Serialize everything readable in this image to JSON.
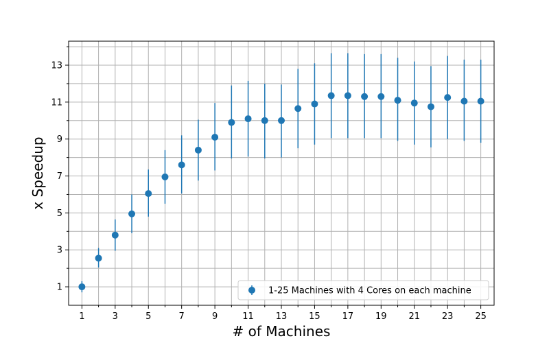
{
  "chart_data": {
    "type": "scatter",
    "title": "",
    "xlabel": "# of Machines",
    "ylabel": "x Speedup",
    "xlim": [
      0.2,
      25.8
    ],
    "ylim": [
      0.0,
      14.3
    ],
    "grid": true,
    "legend_position": "lower-right",
    "x_ticks": [
      1,
      3,
      5,
      7,
      9,
      11,
      13,
      15,
      17,
      19,
      21,
      23,
      25
    ],
    "x_ticks_labeled": [
      "1",
      "3",
      "5",
      "7",
      "9",
      "11",
      "13",
      "15",
      "17",
      "19",
      "21",
      "23",
      "25"
    ],
    "y_ticks_labeled": [
      "1",
      "3",
      "5",
      "7",
      "9",
      "11",
      "13"
    ],
    "y_ticks_all": [
      1,
      2,
      3,
      4,
      5,
      6,
      7,
      8,
      9,
      10,
      11,
      12,
      13,
      14
    ],
    "series": [
      {
        "name": "1-25 Machines with 4 Cores on each machine",
        "color": "#1f77b4",
        "x": [
          1,
          2,
          3,
          4,
          5,
          6,
          7,
          8,
          9,
          10,
          11,
          12,
          13,
          14,
          15,
          16,
          17,
          18,
          19,
          20,
          21,
          22,
          23,
          24,
          25
        ],
        "y": [
          1.0,
          2.55,
          3.8,
          4.95,
          6.05,
          6.95,
          7.6,
          8.4,
          9.1,
          9.9,
          10.1,
          10.0,
          10.0,
          10.65,
          10.9,
          11.35,
          11.35,
          11.3,
          11.3,
          11.1,
          10.95,
          10.75,
          11.25,
          11.05,
          11.05
        ],
        "err_low": [
          0.7,
          2.05,
          2.95,
          3.9,
          4.8,
          5.5,
          6.05,
          6.75,
          7.3,
          7.95,
          8.05,
          7.95,
          8.0,
          8.5,
          8.7,
          9.05,
          9.05,
          9.05,
          9.05,
          8.9,
          8.7,
          8.55,
          9.0,
          8.9,
          8.8
        ],
        "err_high": [
          1.3,
          3.1,
          4.65,
          6.0,
          7.35,
          8.4,
          9.2,
          10.05,
          10.95,
          11.9,
          12.15,
          12.0,
          11.95,
          12.8,
          13.1,
          13.65,
          13.65,
          13.6,
          13.6,
          13.4,
          13.2,
          12.95,
          13.5,
          13.3,
          13.3
        ]
      }
    ]
  }
}
